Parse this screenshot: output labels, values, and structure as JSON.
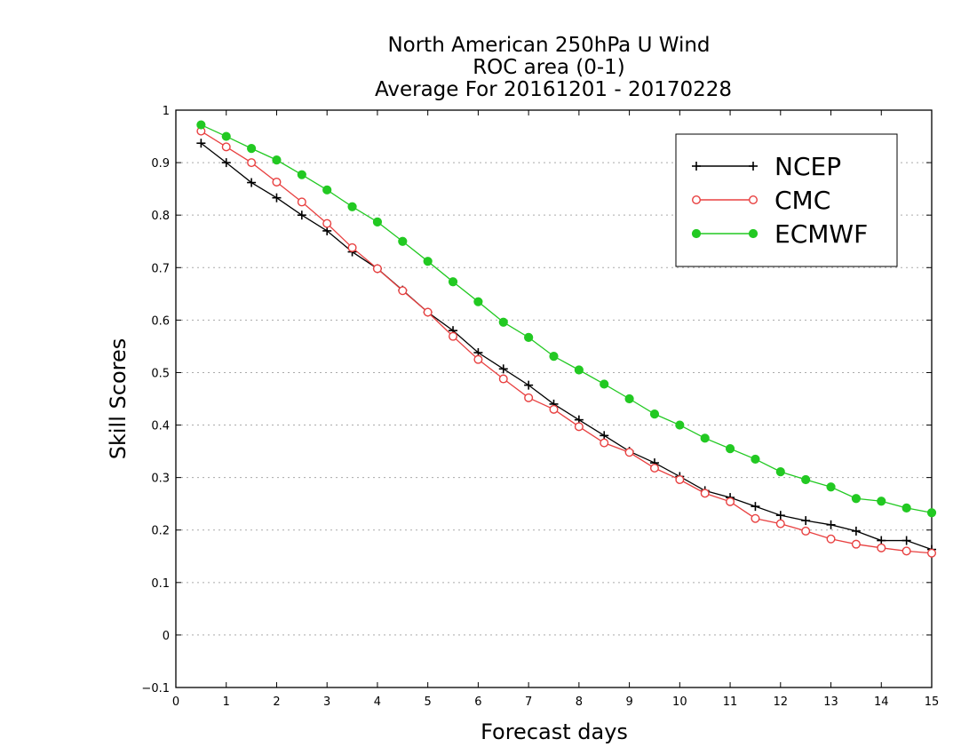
{
  "chart_data": {
    "type": "line",
    "title_lines": [
      "North American 250hPa U Wind",
      "ROC area (0-1)",
      "Average For 20161201 - 20170228"
    ],
    "xlabel": "Forecast days",
    "ylabel": "Skill Scores",
    "xlim": [
      0,
      15
    ],
    "ylim": [
      -0.1,
      1
    ],
    "x_ticks": [
      "0",
      "1",
      "2",
      "3",
      "4",
      "5",
      "6",
      "7",
      "8",
      "9",
      "10",
      "11",
      "12",
      "13",
      "14",
      "15"
    ],
    "y_ticks": [
      "−0.1",
      "0",
      "0.1",
      "0.2",
      "0.3",
      "0.4",
      "0.5",
      "0.6",
      "0.7",
      "0.8",
      "0.9",
      "1"
    ],
    "grid": "horizontal dotted",
    "legend_position": "top-right",
    "x": [
      0.5,
      1,
      1.5,
      2,
      2.5,
      3,
      3.5,
      4,
      4.5,
      5,
      5.5,
      6,
      6.5,
      7,
      7.5,
      8,
      8.5,
      9,
      9.5,
      10,
      10.5,
      11,
      11.5,
      12,
      12.5,
      13,
      13.5,
      14,
      14.5,
      15
    ],
    "series": [
      {
        "name": "NCEP",
        "color": "#000000",
        "marker": "plus",
        "values": [
          0.937,
          0.9,
          0.862,
          0.833,
          0.8,
          0.77,
          0.73,
          0.698,
          0.657,
          0.615,
          0.58,
          0.538,
          0.507,
          0.476,
          0.44,
          0.41,
          0.38,
          0.35,
          0.328,
          0.302,
          0.275,
          0.262,
          0.245,
          0.228,
          0.218,
          0.21,
          0.198,
          0.18,
          0.18,
          0.163
        ]
      },
      {
        "name": "CMC",
        "color": "#e84040",
        "marker": "open-circle",
        "values": [
          0.96,
          0.93,
          0.9,
          0.863,
          0.825,
          0.784,
          0.738,
          0.698,
          0.656,
          0.615,
          0.569,
          0.525,
          0.488,
          0.452,
          0.43,
          0.397,
          0.366,
          0.348,
          0.318,
          0.296,
          0.27,
          0.254,
          0.222,
          0.212,
          0.198,
          0.183,
          0.173,
          0.166,
          0.16,
          0.156
        ]
      },
      {
        "name": "ECMWF",
        "color": "#22c922",
        "marker": "filled-circle",
        "values": [
          0.972,
          0.95,
          0.927,
          0.905,
          0.877,
          0.848,
          0.816,
          0.787,
          0.75,
          0.712,
          0.673,
          0.635,
          0.596,
          0.567,
          0.531,
          0.505,
          0.478,
          0.45,
          0.421,
          0.4,
          0.375,
          0.355,
          0.335,
          0.311,
          0.296,
          0.282,
          0.26,
          0.255,
          0.242,
          0.233
        ]
      }
    ]
  }
}
